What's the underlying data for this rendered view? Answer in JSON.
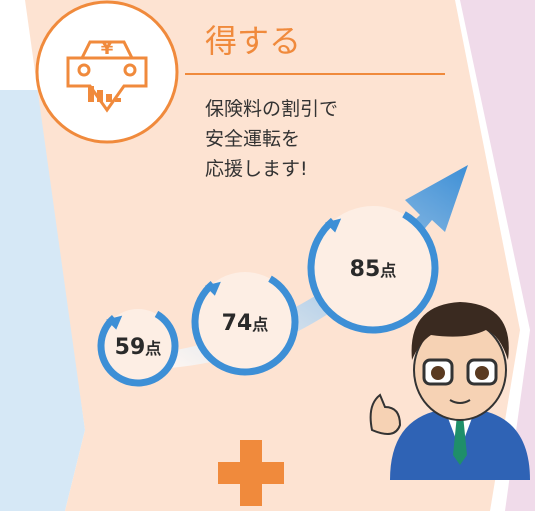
{
  "header": {
    "title": "得する"
  },
  "icon": {
    "symbol": "¥"
  },
  "description": {
    "lines": [
      "保険料の割引で",
      "安全運転を",
      "応援します!"
    ]
  },
  "scores": [
    {
      "number": "59",
      "unit": "点"
    },
    {
      "number": "74",
      "unit": "点"
    },
    {
      "number": "85",
      "unit": "点"
    }
  ]
}
